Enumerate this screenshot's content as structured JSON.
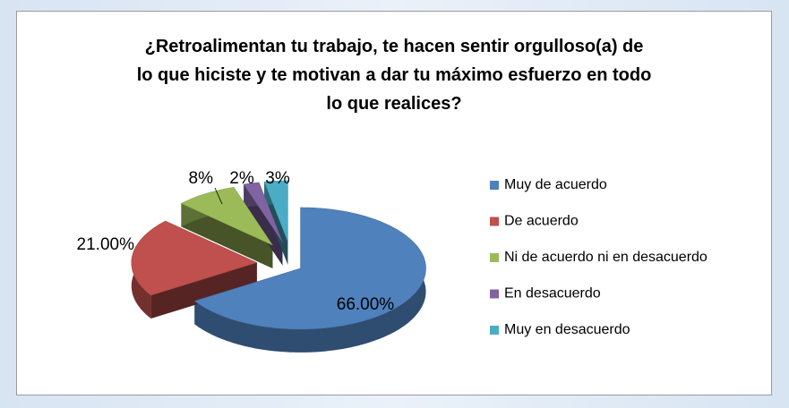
{
  "chart_data": {
    "type": "pie3d",
    "title": "¿Retroalimentan tu trabajo, te hacen sentir orgulloso(a) de lo que hiciste y te motivan a dar tu máximo esfuerzo en todo lo que realices?",
    "categories": [
      "Muy de acuerdo",
      "De acuerdo",
      "Ni de acuerdo ni en desacuerdo",
      "En desacuerdo",
      "Muy en desacuerdo"
    ],
    "values": [
      66,
      21,
      8,
      2,
      3
    ],
    "value_labels": [
      "66.00%",
      "21.00%",
      "8%",
      "2%",
      "3%"
    ],
    "colors": [
      "#4f81bd",
      "#c0504d",
      "#9bbb59",
      "#8064a2",
      "#4bacc6"
    ],
    "legend": "right"
  }
}
